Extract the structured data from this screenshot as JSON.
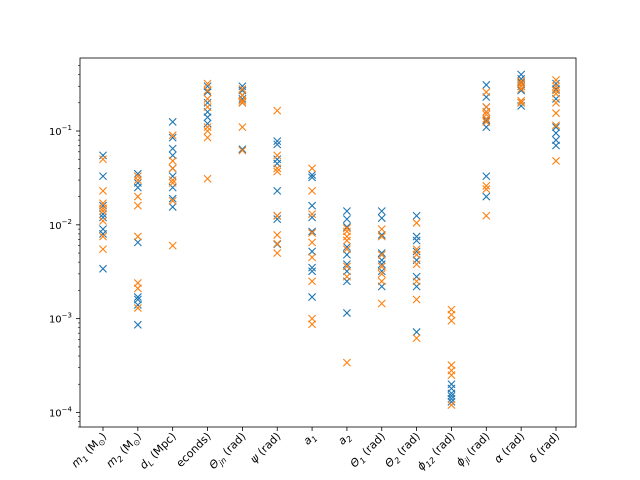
{
  "chart_data": {
    "type": "scatter",
    "y_scale": "log",
    "ylim": [
      7e-05,
      0.6
    ],
    "y_ticks": [
      {
        "value": 0.0001,
        "base": "10",
        "exp": "−4"
      },
      {
        "value": 0.001,
        "base": "10",
        "exp": "−3"
      },
      {
        "value": 0.01,
        "base": "10",
        "exp": "−2"
      },
      {
        "value": 0.1,
        "base": "10",
        "exp": "−1"
      }
    ],
    "categories": [
      {
        "main": "m",
        "sub": "1",
        "unit": " (M",
        "unit_sub": "⊙",
        "close": ")"
      },
      {
        "main": "m",
        "sub": "2",
        "unit": " (M",
        "unit_sub": "⊙",
        "close": ")"
      },
      {
        "main": "d",
        "sub": "L",
        "unit": " (Mpc)",
        "unit_sub": "",
        "close": ""
      },
      {
        "main": "",
        "sub": "",
        "unit": "econds)",
        "unit_sub": "",
        "close": ""
      },
      {
        "main": "Θ",
        "sub": "jn",
        "unit": " (rad)",
        "unit_sub": "",
        "close": ""
      },
      {
        "main": "ψ",
        "sub": "",
        "unit": " (rad)",
        "unit_sub": "",
        "close": ""
      },
      {
        "main": "a",
        "sub": "1",
        "unit": "",
        "unit_sub": "",
        "close": ""
      },
      {
        "main": "a",
        "sub": "2",
        "unit": "",
        "unit_sub": "",
        "close": ""
      },
      {
        "main": "Θ",
        "sub": "1",
        "unit": " (rad)",
        "unit_sub": "",
        "close": ""
      },
      {
        "main": "Θ",
        "sub": "2",
        "unit": " (rad)",
        "unit_sub": "",
        "close": ""
      },
      {
        "main": "ϕ",
        "sub": "12",
        "unit": " (rad)",
        "unit_sub": "",
        "close": ""
      },
      {
        "main": "ϕ",
        "sub": "jl",
        "unit": " (rad)",
        "unit_sub": "",
        "close": ""
      },
      {
        "main": "α",
        "sub": "",
        "unit": " (rad)",
        "unit_sub": "",
        "close": ""
      },
      {
        "main": "δ",
        "sub": "",
        "unit": " (rad)",
        "unit_sub": "",
        "close": ""
      }
    ],
    "series": [
      {
        "color": "#1f77b4",
        "marker": "x",
        "values": [
          [
            0.055,
            0.033,
            0.016,
            0.013,
            0.012,
            0.009,
            0.008,
            0.0034
          ],
          [
            0.035,
            0.028,
            0.025,
            0.0065,
            0.0017,
            0.0016,
            0.0014,
            0.00086
          ],
          [
            0.125,
            0.085,
            0.065,
            0.055,
            0.04,
            0.033,
            0.025,
            0.019,
            0.0155
          ],
          [
            0.3,
            0.26,
            0.2,
            0.16,
            0.14,
            0.12
          ],
          [
            0.3,
            0.27,
            0.24,
            0.22,
            0.2,
            0.064
          ],
          [
            0.078,
            0.072,
            0.05,
            0.045,
            0.023,
            0.0125,
            0.0115,
            0.0062
          ],
          [
            0.034,
            0.032,
            0.016,
            0.012,
            0.0085,
            0.0052,
            0.0035,
            0.0032,
            0.0017
          ],
          [
            0.014,
            0.0115,
            0.0095,
            0.0058,
            0.0048,
            0.0038,
            0.0032,
            0.0025,
            0.00115
          ],
          [
            0.014,
            0.0118,
            0.0078,
            0.005,
            0.0042,
            0.0038,
            0.0032,
            0.0022
          ],
          [
            0.0125,
            0.0075,
            0.0068,
            0.0052,
            0.0042,
            0.0028,
            0.0022,
            0.00072
          ],
          [
            0.0002,
            0.00018,
            0.00016,
            0.00015,
            0.00014,
            0.00013
          ],
          [
            0.31,
            0.23,
            0.18,
            0.16,
            0.13,
            0.11,
            0.033,
            0.02
          ],
          [
            0.4,
            0.36,
            0.33,
            0.3,
            0.27,
            0.2,
            0.185
          ],
          [
            0.32,
            0.28,
            0.22,
            0.11,
            0.095,
            0.08,
            0.07
          ]
        ]
      },
      {
        "color": "#ff7f0e",
        "marker": "x",
        "values": [
          [
            0.05,
            0.023,
            0.017,
            0.015,
            0.014,
            0.011,
            0.0075,
            0.0055
          ],
          [
            0.033,
            0.03,
            0.02,
            0.016,
            0.0075,
            0.0024,
            0.0021,
            0.0013
          ],
          [
            0.09,
            0.048,
            0.04,
            0.03,
            0.028,
            0.018,
            0.006
          ],
          [
            0.32,
            0.27,
            0.22,
            0.18,
            0.11,
            0.1,
            0.085,
            0.031
          ],
          [
            0.28,
            0.24,
            0.21,
            0.2,
            0.11,
            0.062
          ],
          [
            0.165,
            0.055,
            0.04,
            0.037,
            0.0125,
            0.0078,
            0.0063,
            0.005
          ],
          [
            0.04,
            0.023,
            0.013,
            0.0082,
            0.0065,
            0.0045,
            0.0025,
            0.001,
            0.00087
          ],
          [
            0.0092,
            0.0085,
            0.0075,
            0.0068,
            0.0055,
            0.0036,
            0.0028,
            0.00034
          ],
          [
            0.009,
            0.0075,
            0.0048,
            0.0036,
            0.003,
            0.0025,
            0.00145
          ],
          [
            0.0105,
            0.0055,
            0.0048,
            0.0038,
            0.0025,
            0.0016,
            0.00062
          ],
          [
            0.00125,
            0.0011,
            0.00095,
            0.00032,
            0.00028,
            0.00025,
            0.00012
          ],
          [
            0.26,
            0.18,
            0.16,
            0.15,
            0.135,
            0.125,
            0.026,
            0.024,
            0.0125
          ],
          [
            0.34,
            0.32,
            0.3,
            0.28,
            0.21,
            0.2
          ],
          [
            0.35,
            0.3,
            0.27,
            0.25,
            0.2,
            0.155,
            0.115,
            0.048
          ]
        ]
      }
    ]
  }
}
